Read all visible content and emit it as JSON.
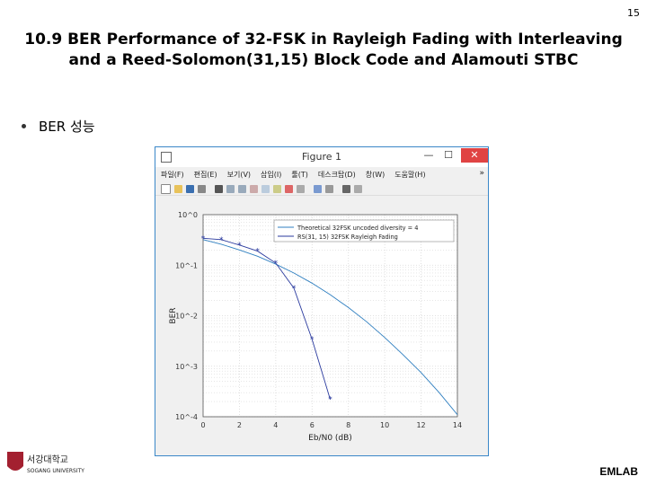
{
  "page_number": "15",
  "title_line1": "10.9 BER Performance of 32-FSK in Rayleigh Fading with Interleaving",
  "title_line2": "and a Reed-Solomon(31,15) Block Code and Alamouti STBC",
  "bullet": "BER 성능",
  "figure_window": {
    "title": "Figure 1",
    "menu": [
      "파일(F)",
      "편집(E)",
      "보기(V)",
      "삽입(I)",
      "툴(T)",
      "데스크탑(D)",
      "창(W)",
      "도움말(H)"
    ],
    "colors": {
      "theory": "#2f7fc0",
      "rs": "#2a3a9e",
      "grid": "#d8d8d8"
    }
  },
  "chart_data": {
    "type": "line",
    "xlabel": "Eb/N0 (dB)",
    "ylabel": "BER",
    "xlim": [
      0,
      14
    ],
    "ylim": [
      0.0001,
      1
    ],
    "yscale": "log",
    "xticks": [
      "0",
      "2",
      "4",
      "6",
      "8",
      "10",
      "12",
      "14"
    ],
    "yticks": [
      "10^0",
      "10^-1",
      "10^-2",
      "10^-3",
      "10^-4"
    ],
    "grid": true,
    "legend_position": "top-right",
    "series": [
      {
        "name": "Theoretical 32FSK uncoded diversity = 4",
        "style": "line",
        "x": [
          0,
          1,
          2,
          3,
          4,
          5,
          6,
          7,
          8,
          9,
          10,
          11,
          12,
          13,
          14
        ],
        "y": [
          0.32,
          0.26,
          0.2,
          0.15,
          0.105,
          0.07,
          0.044,
          0.026,
          0.0145,
          0.0076,
          0.0037,
          0.0017,
          0.00075,
          0.0003,
          0.00011
        ]
      },
      {
        "name": "RS(31, 15) 32FSK Rayleigh Fading",
        "style": "line-marker",
        "x": [
          0,
          1,
          2,
          3,
          4,
          5,
          6,
          7
        ],
        "y": [
          0.34,
          0.32,
          0.25,
          0.19,
          0.11,
          0.035,
          0.0034,
          0.00022
        ]
      }
    ]
  },
  "footer": {
    "logo_text": "서강대학교",
    "logo_subtext": "SOGANG UNIVERSITY",
    "lab": "EMLAB"
  }
}
